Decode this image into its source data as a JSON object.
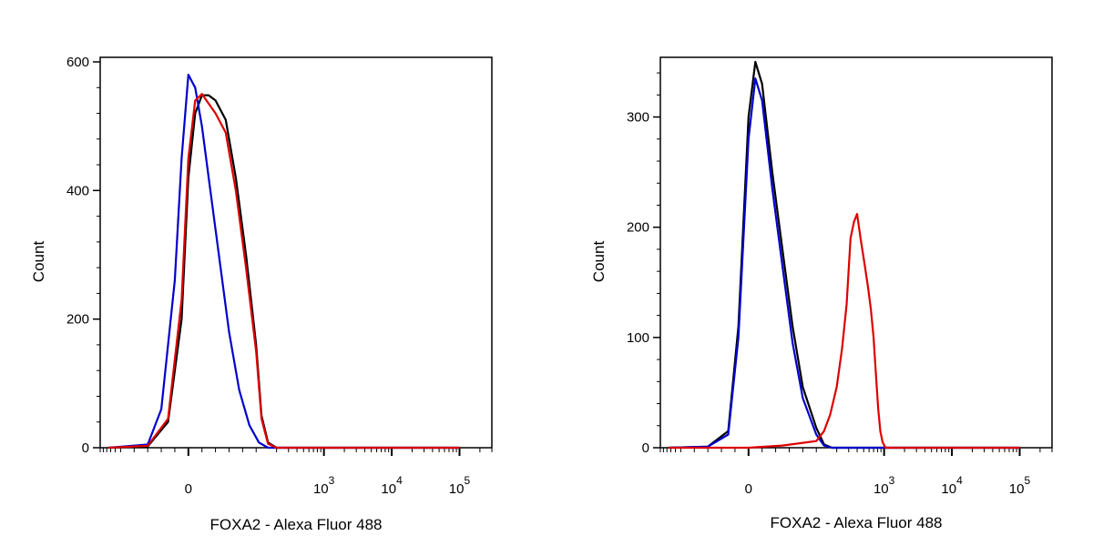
{
  "chart_data": [
    {
      "type": "line",
      "title": "",
      "xlabel": "FOXA2 - Alexa Fluor 488",
      "ylabel": "Count",
      "ylim": [
        0,
        600
      ],
      "x_scale": "biexponential",
      "x_ticks": [
        {
          "value": 0,
          "base": "0",
          "exp": ""
        },
        {
          "value": 1000,
          "base": "10",
          "exp": "3"
        },
        {
          "value": 10000,
          "base": "10",
          "exp": "4"
        },
        {
          "value": 100000,
          "base": "10",
          "exp": "5"
        }
      ],
      "y_ticks": [
        0,
        200,
        400,
        600
      ],
      "grid": false,
      "legend": "none",
      "series": [
        {
          "color": "#000000",
          "x": [
            -150,
            -60,
            -30,
            -10,
            0,
            10,
            20,
            30,
            40,
            55,
            70,
            85,
            100,
            120,
            150,
            200,
            400,
            1000,
            10000,
            100000
          ],
          "y": [
            0,
            2,
            40,
            200,
            420,
            520,
            548,
            548,
            540,
            510,
            420,
            300,
            160,
            50,
            8,
            0,
            0,
            0,
            0,
            0
          ]
        },
        {
          "color": "#0000cc",
          "x": [
            -150,
            -60,
            -40,
            -20,
            -10,
            0,
            10,
            20,
            30,
            45,
            60,
            75,
            90,
            110,
            150,
            200,
            400,
            1000,
            10000,
            100000
          ],
          "y": [
            0,
            5,
            60,
            260,
            450,
            580,
            560,
            500,
            420,
            300,
            180,
            90,
            35,
            8,
            0,
            0,
            0,
            0,
            0,
            0
          ]
        },
        {
          "color": "#dd0000",
          "x": [
            -150,
            -60,
            -30,
            -10,
            0,
            10,
            20,
            30,
            40,
            55,
            70,
            85,
            100,
            120,
            150,
            200,
            400,
            1000,
            10000,
            100000
          ],
          "y": [
            0,
            3,
            45,
            230,
            450,
            540,
            550,
            535,
            520,
            490,
            400,
            280,
            150,
            45,
            6,
            0,
            0,
            0,
            0,
            0
          ]
        }
      ]
    },
    {
      "type": "line",
      "title": "",
      "xlabel": "FOXA2 - Alexa Fluor 488",
      "ylabel": "Count",
      "ylim": [
        0,
        350
      ],
      "x_scale": "biexponential",
      "x_ticks": [
        {
          "value": 0,
          "base": "0",
          "exp": ""
        },
        {
          "value": 1000,
          "base": "10",
          "exp": "3"
        },
        {
          "value": 10000,
          "base": "10",
          "exp": "4"
        },
        {
          "value": 100000,
          "base": "10",
          "exp": "5"
        }
      ],
      "y_ticks": [
        0,
        100,
        200,
        300
      ],
      "grid": false,
      "legend": "none",
      "series": [
        {
          "color": "#000000",
          "x": [
            -150,
            -60,
            -30,
            -15,
            0,
            10,
            20,
            35,
            50,
            65,
            80,
            100,
            130,
            170,
            250,
            1000,
            10000,
            100000
          ],
          "y": [
            0,
            1,
            15,
            110,
            300,
            350,
            330,
            250,
            180,
            110,
            55,
            18,
            3,
            0,
            0,
            0,
            0,
            0
          ]
        },
        {
          "color": "#0000cc",
          "x": [
            -150,
            -60,
            -30,
            -15,
            0,
            10,
            20,
            35,
            50,
            65,
            80,
            100,
            130,
            170,
            250,
            1000,
            10000,
            100000
          ],
          "y": [
            0,
            1,
            12,
            100,
            280,
            335,
            315,
            235,
            165,
            95,
            45,
            12,
            2,
            0,
            0,
            0,
            0,
            0
          ]
        },
        {
          "color": "#dd0000",
          "x": [
            -150,
            0,
            50,
            100,
            130,
            160,
            200,
            240,
            280,
            320,
            360,
            400,
            450,
            520,
            580,
            640,
            700,
            760,
            820,
            880,
            950,
            1050,
            10000,
            100000
          ],
          "y": [
            0,
            0,
            2,
            6,
            15,
            30,
            55,
            90,
            130,
            190,
            205,
            212,
            190,
            165,
            145,
            125,
            100,
            65,
            35,
            15,
            5,
            0,
            0,
            0
          ]
        }
      ]
    }
  ]
}
